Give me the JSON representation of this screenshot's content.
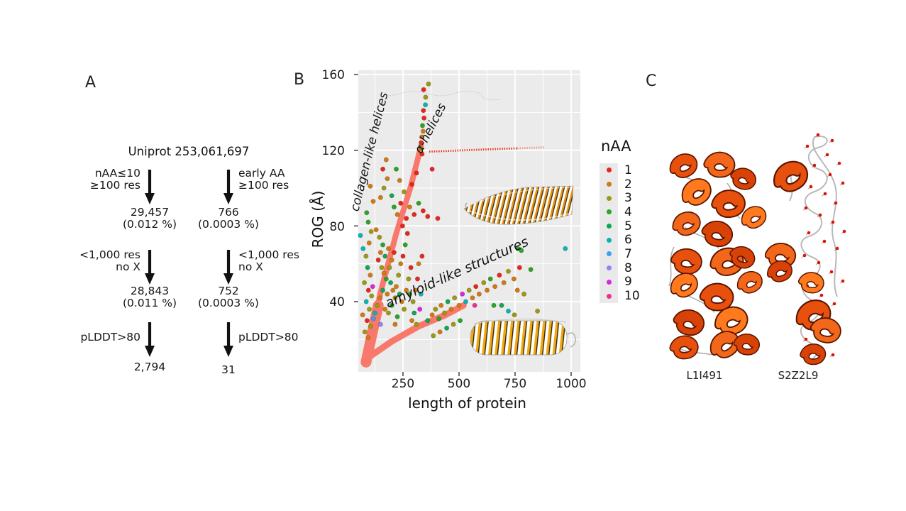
{
  "panelA": {
    "label": "A",
    "root": "Uniprot 253,061,697",
    "columns": [
      {
        "filters": [
          [
            "nAA≤10",
            "≥100 res"
          ],
          [
            "<1,000 res",
            "no X"
          ],
          [
            "pLDDT>80"
          ]
        ],
        "results": [
          [
            "29,457",
            "(0.012 %)"
          ],
          [
            "28,843",
            "(0.011 %)"
          ],
          [
            "2,794"
          ]
        ]
      },
      {
        "filters": [
          [
            "early AA",
            "≥100 res"
          ],
          [
            "<1,000 res",
            "no X"
          ],
          [
            "pLDDT>80"
          ]
        ],
        "results": [
          [
            "766",
            "(0.0003 %)"
          ],
          [
            "752",
            "(0.0003 %)"
          ],
          [
            "31"
          ]
        ]
      }
    ]
  },
  "panelB": {
    "label": "B",
    "ylabel": "ROG (Å)",
    "xlabel": "length of protein",
    "y_ticks": [
      "160",
      "120",
      "80",
      "40"
    ],
    "x_ticks": [
      "250",
      "500",
      "750",
      "1000"
    ],
    "annotations": {
      "collagen": "collagen-like helices",
      "alpha": "α-helices",
      "amyloid": "amyloid-like structures"
    }
  },
  "legend": {
    "title": "nAA",
    "entries": [
      {
        "label": "1",
        "color": "#e4281f"
      },
      {
        "label": "2",
        "color": "#ce7a16"
      },
      {
        "label": "3",
        "color": "#9a9a10"
      },
      {
        "label": "4",
        "color": "#26a527"
      },
      {
        "label": "5",
        "color": "#0fa655"
      },
      {
        "label": "6",
        "color": "#06b5b8"
      },
      {
        "label": "7",
        "color": "#3aa2f2"
      },
      {
        "label": "8",
        "color": "#8f86f2"
      },
      {
        "label": "9",
        "color": "#da26dd"
      },
      {
        "label": "10",
        "color": "#ef2f93"
      }
    ]
  },
  "panelC": {
    "label": "C",
    "structures": [
      {
        "id": "L1I491"
      },
      {
        "id": "S2Z2L9"
      }
    ]
  },
  "chart_data": {
    "type": "scatter",
    "title": "",
    "xlabel": "length of protein",
    "ylabel": "ROG (Å)",
    "xlim": [
      50,
      1040
    ],
    "ylim": [
      3,
      162
    ],
    "x_ticks": [
      250,
      500,
      750,
      1000
    ],
    "y_ticks": [
      40,
      80,
      120,
      160
    ],
    "grid": true,
    "legend_title": "nAA",
    "legend_position": "right",
    "classes": {
      "1": "#e4281f",
      "2": "#ce7a16",
      "3": "#9a9a10",
      "4": "#26a527",
      "5": "#0fa655",
      "6": "#06b5b8",
      "7": "#3aa2f2",
      "8": "#8f86f2",
      "9": "#da26dd",
      "10": "#ef2f93"
    },
    "annotations": [
      {
        "text": "collagen-like helices",
        "x": 101,
        "y": 119,
        "angle": -76
      },
      {
        "text": "α-helices",
        "x": 373,
        "y": 131,
        "angle": -63
      },
      {
        "text": "amyloid-like structures",
        "x": 490,
        "y": 55,
        "angle": -24
      }
    ],
    "reference_curves": [
      {
        "name": "extended-chain-trace",
        "color": "#c4c4c4",
        "style": "dashed",
        "y": 150,
        "x_range": [
          177,
          690
        ]
      },
      {
        "name": "alpha-helix-trace",
        "color": "#e03a1e",
        "style": "dotted",
        "y": 120,
        "x_range": [
          367,
          883
        ]
      }
    ],
    "dense_streaks": [
      {
        "name": "collagen-like-helices-streak",
        "color": "#f8796c",
        "width": 8,
        "points": [
          [
            95,
            15
          ],
          [
            150,
            45
          ],
          [
            220,
            76
          ],
          [
            285,
            101
          ],
          [
            330,
            122
          ]
        ]
      },
      {
        "name": "collagen-base-blob",
        "color": "#f8796c",
        "width": 15,
        "points": [
          [
            85,
            8
          ],
          [
            112,
            23
          ],
          [
            140,
            38
          ]
        ]
      },
      {
        "name": "amyloid-like-streak",
        "color": "#f8796c",
        "width": 9,
        "points": [
          [
            90,
            10
          ],
          [
            200,
            19
          ],
          [
            320,
            27
          ],
          [
            440,
            33
          ],
          [
            520,
            38
          ]
        ]
      }
    ],
    "points": [
      [
        364,
        155,
        3
      ],
      [
        342,
        152,
        1
      ],
      [
        351,
        148,
        3
      ],
      [
        350,
        144,
        6
      ],
      [
        341,
        141,
        1
      ],
      [
        344,
        137,
        1
      ],
      [
        337,
        133,
        4
      ],
      [
        340,
        130,
        2
      ],
      [
        334,
        127,
        2
      ],
      [
        331,
        124,
        1
      ],
      [
        328,
        121,
        3
      ],
      [
        335,
        118,
        1
      ],
      [
        104,
        101,
        2
      ],
      [
        117,
        93,
        2
      ],
      [
        88,
        87,
        4
      ],
      [
        95,
        82,
        4
      ],
      [
        108,
        77,
        3
      ],
      [
        72,
        68,
        6
      ],
      [
        99,
        71,
        2
      ],
      [
        85,
        64,
        3
      ],
      [
        92,
        58,
        5
      ],
      [
        104,
        54,
        2
      ],
      [
        78,
        50,
        3
      ],
      [
        96,
        46,
        1
      ],
      [
        110,
        43,
        3
      ],
      [
        86,
        40,
        6
      ],
      [
        100,
        36,
        3
      ],
      [
        70,
        33,
        2
      ],
      [
        90,
        30,
        1
      ],
      [
        106,
        27,
        3
      ],
      [
        80,
        24,
        3
      ],
      [
        95,
        21,
        2
      ],
      [
        115,
        48,
        9
      ],
      [
        60,
        75,
        6
      ],
      [
        130,
        78,
        2
      ],
      [
        145,
        74,
        3
      ],
      [
        160,
        70,
        4
      ],
      [
        150,
        66,
        2
      ],
      [
        170,
        64,
        5
      ],
      [
        185,
        68,
        2
      ],
      [
        140,
        62,
        1
      ],
      [
        155,
        58,
        3
      ],
      [
        165,
        55,
        2
      ],
      [
        175,
        52,
        4
      ],
      [
        190,
        58,
        3
      ],
      [
        200,
        62,
        2
      ],
      [
        210,
        66,
        1
      ],
      [
        195,
        50,
        5
      ],
      [
        205,
        46,
        2
      ],
      [
        215,
        42,
        3
      ],
      [
        180,
        44,
        2
      ],
      [
        160,
        46,
        5
      ],
      [
        148,
        42,
        2
      ],
      [
        135,
        38,
        3
      ],
      [
        125,
        34,
        6
      ],
      [
        170,
        36,
        2
      ],
      [
        185,
        34,
        3
      ],
      [
        200,
        38,
        4
      ],
      [
        220,
        48,
        2
      ],
      [
        230,
        54,
        3
      ],
      [
        240,
        60,
        2
      ],
      [
        250,
        64,
        1
      ],
      [
        235,
        44,
        5
      ],
      [
        245,
        40,
        2
      ],
      [
        255,
        36,
        3
      ],
      [
        225,
        32,
        4
      ],
      [
        215,
        28,
        2
      ],
      [
        265,
        46,
        2
      ],
      [
        275,
        52,
        3
      ],
      [
        285,
        58,
        1
      ],
      [
        280,
        44,
        4
      ],
      [
        295,
        40,
        3
      ],
      [
        305,
        46,
        2
      ],
      [
        315,
        52,
        1
      ],
      [
        300,
        34,
        5
      ],
      [
        290,
        30,
        2
      ],
      [
        310,
        28,
        3
      ],
      [
        325,
        36,
        9
      ],
      [
        330,
        44,
        6
      ],
      [
        320,
        60,
        2
      ],
      [
        335,
        64,
        1
      ],
      [
        260,
        70,
        4
      ],
      [
        270,
        76,
        1
      ],
      [
        248,
        80,
        1
      ],
      [
        150,
        28,
        8
      ],
      [
        118,
        31,
        7
      ],
      [
        150,
        95,
        2
      ],
      [
        165,
        100,
        3
      ],
      [
        180,
        105,
        2
      ],
      [
        160,
        110,
        1
      ],
      [
        175,
        115,
        2
      ],
      [
        200,
        96,
        5
      ],
      [
        210,
        90,
        4
      ],
      [
        225,
        86,
        2
      ],
      [
        240,
        92,
        1
      ],
      [
        255,
        98,
        3
      ],
      [
        235,
        104,
        2
      ],
      [
        220,
        110,
        4
      ],
      [
        265,
        84,
        1
      ],
      [
        280,
        90,
        2
      ],
      [
        300,
        86,
        1
      ],
      [
        320,
        92,
        4
      ],
      [
        340,
        88,
        1
      ],
      [
        290,
        102,
        1
      ],
      [
        310,
        108,
        1
      ],
      [
        360,
        85,
        1
      ],
      [
        405,
        84,
        1
      ],
      [
        380,
        110,
        1
      ],
      [
        360,
        30,
        5
      ],
      [
        380,
        33,
        2
      ],
      [
        395,
        36,
        3
      ],
      [
        410,
        31,
        4
      ],
      [
        420,
        38,
        2
      ],
      [
        435,
        34,
        3
      ],
      [
        450,
        40,
        5
      ],
      [
        465,
        36,
        2
      ],
      [
        480,
        42,
        3
      ],
      [
        500,
        38,
        2
      ],
      [
        515,
        44,
        9
      ],
      [
        530,
        40,
        6
      ],
      [
        545,
        46,
        3
      ],
      [
        560,
        42,
        2
      ],
      [
        575,
        48,
        1
      ],
      [
        590,
        44,
        2
      ],
      [
        610,
        50,
        3
      ],
      [
        625,
        46,
        2
      ],
      [
        640,
        52,
        4
      ],
      [
        660,
        48,
        2
      ],
      [
        680,
        54,
        1
      ],
      [
        700,
        50,
        2
      ],
      [
        720,
        56,
        3
      ],
      [
        745,
        52,
        2
      ],
      [
        770,
        58,
        1
      ],
      [
        570,
        38,
        10
      ],
      [
        655,
        38,
        4
      ],
      [
        690,
        38,
        5
      ],
      [
        720,
        35,
        6
      ],
      [
        760,
        46,
        2
      ],
      [
        790,
        44,
        3
      ],
      [
        820,
        57,
        4
      ],
      [
        850,
        35,
        3
      ],
      [
        505,
        30,
        4
      ],
      [
        475,
        28,
        3
      ],
      [
        445,
        26,
        5
      ],
      [
        415,
        24,
        2
      ],
      [
        385,
        22,
        3
      ],
      [
        747,
        33,
        3
      ],
      [
        763,
        68,
        4
      ],
      [
        778,
        67,
        4
      ],
      [
        974,
        68,
        6
      ]
    ]
  }
}
